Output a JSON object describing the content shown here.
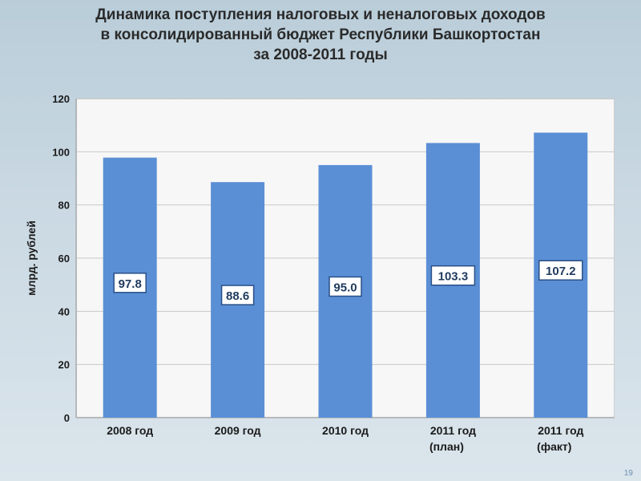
{
  "slide": {
    "title_lines": [
      "Динамика поступления налоговых и неналоговых доходов",
      "в консолидированный бюджет Республики Башкортостан",
      "за 2008-2011 годы"
    ],
    "page_number": "19"
  },
  "chart_data": {
    "type": "bar",
    "categories": [
      [
        "2008 год"
      ],
      [
        "2009 год"
      ],
      [
        "2010 год"
      ],
      [
        "2011 год",
        "(план)"
      ],
      [
        "2011 год",
        "(факт)"
      ]
    ],
    "values": [
      97.8,
      88.6,
      95.0,
      103.3,
      107.2
    ],
    "value_labels": [
      "97.8",
      "88.6",
      "95.0",
      "103.3",
      "107.2"
    ],
    "ylabel": "млрд. рублей",
    "ylim": [
      0,
      120
    ],
    "yticks": [
      0,
      20,
      40,
      60,
      80,
      100,
      120
    ],
    "grid": true,
    "legend": "none",
    "colors": {
      "bar": "#5a8fd6",
      "grid": "#c8c8c8",
      "label_box": "#ffffff",
      "label_text": "#1f3a5f",
      "axis_text": "#1a1a1a"
    }
  }
}
